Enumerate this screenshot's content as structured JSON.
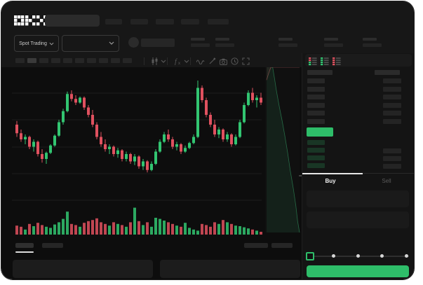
{
  "brand": {
    "logo_text": "OKX"
  },
  "header": {
    "market_selector": {
      "label": "Spot Trading"
    },
    "nav_placeholders": [
      24,
      25,
      26,
      26,
      30
    ],
    "stat_placeholder_x": [
      270,
      305,
      395,
      460,
      515
    ]
  },
  "toolbar": {
    "interval_placeholder_count": 10,
    "active_interval_index": 1,
    "icons": [
      "divider",
      "chart-type",
      "chevron-down",
      "divider",
      "indicators",
      "chevron-down",
      "divider",
      "wave",
      "pencil",
      "camera",
      "clock",
      "expand"
    ]
  },
  "chart_data": [
    {
      "type": "candlestick",
      "title": "",
      "xlabel": "",
      "ylabel": "",
      "note": "no numeric axis labels are rendered; values are normalized 0-100 of plot height",
      "ylim": [
        0,
        100
      ],
      "grid": true,
      "candles_ohlc_norm": [
        [
          64,
          67,
          54,
          57
        ],
        [
          57,
          60,
          50,
          52
        ],
        [
          52,
          56,
          48,
          54
        ],
        [
          54,
          55,
          44,
          46
        ],
        [
          46,
          52,
          42,
          50
        ],
        [
          50,
          51,
          38,
          40
        ],
        [
          40,
          44,
          33,
          36
        ],
        [
          36,
          42,
          32,
          41
        ],
        [
          41,
          48,
          40,
          47
        ],
        [
          47,
          56,
          46,
          55
        ],
        [
          55,
          68,
          54,
          66
        ],
        [
          66,
          77,
          64,
          75
        ],
        [
          75,
          91,
          74,
          89
        ],
        [
          89,
          92,
          83,
          85
        ],
        [
          85,
          88,
          80,
          82
        ],
        [
          82,
          87,
          81,
          86
        ],
        [
          86,
          87,
          76,
          78
        ],
        [
          78,
          80,
          70,
          72
        ],
        [
          72,
          76,
          62,
          64
        ],
        [
          64,
          66,
          52,
          54
        ],
        [
          54,
          58,
          46,
          48
        ],
        [
          48,
          52,
          42,
          44
        ],
        [
          44,
          48,
          40,
          46
        ],
        [
          46,
          47,
          38,
          40
        ],
        [
          40,
          45,
          37,
          43
        ],
        [
          43,
          44,
          34,
          36
        ],
        [
          36,
          42,
          34,
          40
        ],
        [
          40,
          41,
          32,
          34
        ],
        [
          34,
          40,
          31,
          38
        ],
        [
          38,
          39,
          28,
          30
        ],
        [
          30,
          36,
          27,
          34
        ],
        [
          34,
          35,
          25,
          27
        ],
        [
          27,
          34,
          26,
          32
        ],
        [
          32,
          44,
          31,
          42
        ],
        [
          42,
          52,
          41,
          50
        ],
        [
          50,
          58,
          49,
          56
        ],
        [
          56,
          60,
          50,
          52
        ],
        [
          52,
          54,
          44,
          46
        ],
        [
          46,
          50,
          43,
          48
        ],
        [
          48,
          49,
          40,
          42
        ],
        [
          42,
          47,
          41,
          45
        ],
        [
          45,
          50,
          44,
          49
        ],
        [
          49,
          56,
          48,
          54
        ],
        [
          54,
          100,
          53,
          94
        ],
        [
          94,
          96,
          82,
          84
        ],
        [
          84,
          86,
          70,
          72
        ],
        [
          72,
          74,
          62,
          64
        ],
        [
          64,
          68,
          54,
          56
        ],
        [
          56,
          62,
          53,
          60
        ],
        [
          60,
          61,
          50,
          52
        ],
        [
          52,
          58,
          50,
          56
        ],
        [
          56,
          57,
          46,
          48
        ],
        [
          48,
          56,
          47,
          54
        ],
        [
          54,
          68,
          53,
          66
        ],
        [
          66,
          82,
          65,
          80
        ],
        [
          80,
          92,
          79,
          90
        ],
        [
          90,
          94,
          82,
          84
        ],
        [
          84,
          88,
          78,
          86
        ],
        [
          86,
          90,
          80,
          82
        ]
      ]
    },
    {
      "type": "bar",
      "name": "volume",
      "note": "bar colors follow candle direction; values normalized 0-100",
      "values": [
        32,
        28,
        18,
        38,
        30,
        42,
        34,
        28,
        24,
        36,
        44,
        56,
        82,
        38,
        34,
        28,
        42,
        48,
        52,
        58,
        44,
        38,
        32,
        44,
        38,
        34,
        28,
        44,
        96,
        48,
        34,
        44,
        28,
        60,
        56,
        50,
        44,
        38,
        32,
        28,
        42,
        24,
        18,
        14,
        38,
        34,
        28,
        44,
        38,
        52,
        44,
        38,
        32,
        30,
        26,
        22,
        18,
        14,
        10
      ]
    },
    {
      "type": "area",
      "name": "market-depth-profile",
      "orientation": "vertical",
      "asks_region": "upper",
      "bids_region": "lower",
      "asks_curve_norm": [
        [
          0,
          32
        ],
        [
          6,
          37
        ],
        [
          13,
          42
        ],
        [
          19,
          47
        ],
        [
          26,
          53
        ],
        [
          34,
          60
        ],
        [
          43,
          68
        ],
        [
          55,
          76
        ],
        [
          68,
          84
        ],
        [
          81,
          91
        ],
        [
          93,
          97
        ],
        [
          100,
          100
        ]
      ],
      "bids_curve_norm": [
        [
          0,
          32
        ],
        [
          6,
          27
        ],
        [
          11,
          23
        ],
        [
          17,
          19
        ],
        [
          23,
          15
        ],
        [
          30,
          10
        ],
        [
          38,
          5
        ],
        [
          47,
          0
        ],
        [
          55,
          -5
        ],
        [
          64,
          -11
        ],
        [
          72,
          -17
        ],
        [
          81,
          -23
        ],
        [
          89,
          -29
        ],
        [
          94,
          -34
        ],
        [
          100,
          -38
        ]
      ]
    }
  ],
  "orderbook": {
    "view_icons": [
      "book-both-icon",
      "book-bids-icon",
      "book-asks-icon"
    ],
    "header_row": {
      "left_bar": true,
      "right_bar": true
    },
    "ask_rows": 6,
    "last_price_bar": {
      "text": "",
      "color": "#2ebd69"
    },
    "bid_rows": [
      {
        "right_bar": false
      },
      {
        "right_bar": true
      },
      {
        "right_bar": true
      },
      {
        "right_bar": true
      }
    ]
  },
  "trade_panel": {
    "tabs": [
      {
        "label": "Buy",
        "active": true
      },
      {
        "label": "Sell",
        "active": false
      }
    ],
    "fields": 2,
    "amount_slider": {
      "marks": 5,
      "active_mark": 0
    },
    "submit_button": {
      "label": "",
      "color": "#2ebd69"
    }
  },
  "bottom_bar": {
    "tab_placeholders": 2,
    "active_tab_index": 0,
    "right_placeholders": 2,
    "row_placeholders": 2
  },
  "colors": {
    "up": "#32c571",
    "down": "#e0515f",
    "accent_green": "#2ebd69",
    "window_bg": "#0d0d0d",
    "header_bg": "#171717",
    "panel_bg": "#141414",
    "grid": "#1d1d1d"
  }
}
